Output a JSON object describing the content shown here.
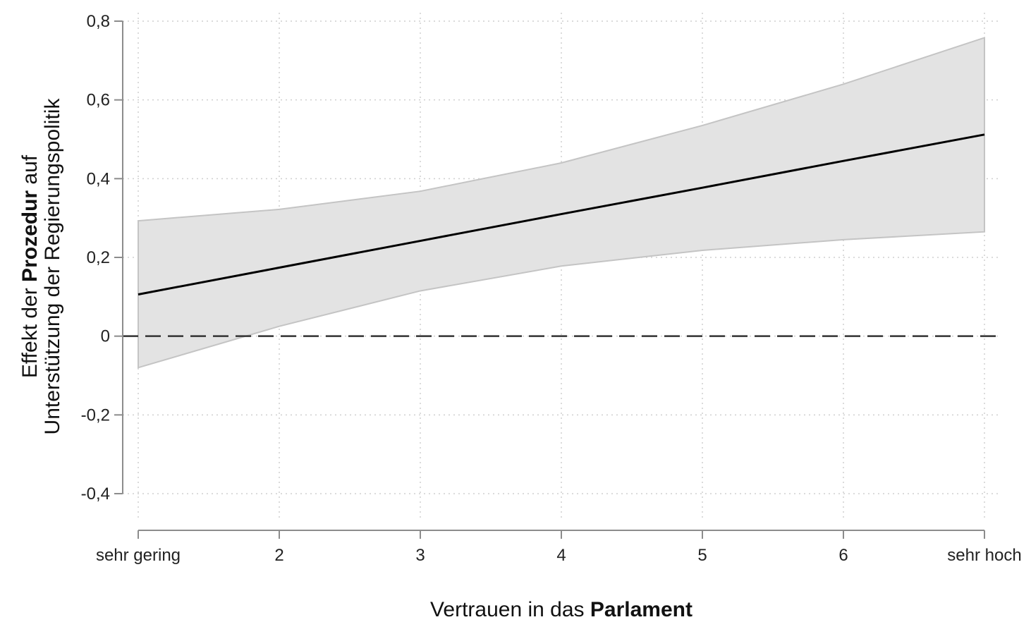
{
  "chart_data": {
    "type": "line",
    "xlabel": {
      "normal": "Vertrauen in das ",
      "bold": "Parlament"
    },
    "ylabel": {
      "line1_normal_a": "Effekt der ",
      "line1_bold": "Prozedur",
      "line1_normal_b": " auf",
      "line2": "Unterstützung der Regierungspolitik"
    },
    "x_ticks": [
      {
        "value": 1,
        "label": "sehr gering"
      },
      {
        "value": 2,
        "label": "2"
      },
      {
        "value": 3,
        "label": "3"
      },
      {
        "value": 4,
        "label": "4"
      },
      {
        "value": 5,
        "label": "5"
      },
      {
        "value": 6,
        "label": "6"
      },
      {
        "value": 7,
        "label": "sehr hoch"
      }
    ],
    "y_ticks": [
      {
        "value": -0.4,
        "label": "-0,4"
      },
      {
        "value": -0.2,
        "label": "-0,2"
      },
      {
        "value": 0,
        "label": "0"
      },
      {
        "value": 0.2,
        "label": "0,2"
      },
      {
        "value": 0.4,
        "label": "0,4"
      },
      {
        "value": 0.6,
        "label": "0,6"
      },
      {
        "value": 0.8,
        "label": "0,8"
      }
    ],
    "xlim": [
      1,
      7
    ],
    "ylim": [
      -0.4,
      0.8
    ],
    "grid": true,
    "reference_line": {
      "y": 0,
      "style": "dashed"
    },
    "series": [
      {
        "x": [
          1,
          2,
          3,
          4,
          5,
          6,
          7
        ],
        "values": [
          0.106,
          0.174,
          0.242,
          0.31,
          0.377,
          0.445,
          0.512
        ],
        "lower": [
          -0.08,
          0.025,
          0.115,
          0.178,
          0.218,
          0.245,
          0.265
        ],
        "upper": [
          0.293,
          0.322,
          0.368,
          0.44,
          0.535,
          0.64,
          0.758
        ]
      }
    ],
    "colors": {
      "line": "#000000",
      "band": "#e3e3e3",
      "band_edge": "#c4c4c4",
      "axis": "#8c8c8c",
      "grid": "#cfcfcf"
    }
  }
}
